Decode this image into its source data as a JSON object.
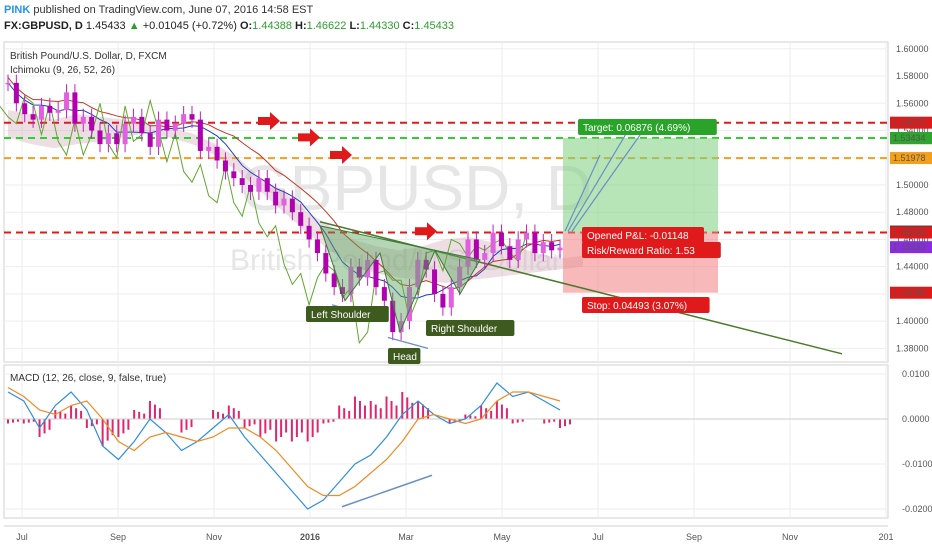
{
  "header": {
    "brand": "PINK",
    "published": "published on TradingView.com, June 07, 2016 14:58 EST",
    "symbol": "FX:GBPUSD, D",
    "last": "1.45433",
    "change": "+0.01045 (+0.72%)",
    "o_label": "O:",
    "o_val": "1.44388",
    "h_label": "H:",
    "h_val": "1.46622",
    "l_label": "L:",
    "l_val": "1.44330",
    "c_label": "C:",
    "c_val": "1.45433"
  },
  "chart_data": [
    {
      "type": "candlestick",
      "title": "British Pound/U.S. Dollar, D, FXCM",
      "watermark_symbol": "GBPUSD, D",
      "watermark_name": "British Pound/U.S. Dollar",
      "indicator": "Ichimoku (9, 26, 52, 26)",
      "x_ticks": [
        "Jul",
        "Sep",
        "Nov",
        "2016",
        "Mar",
        "May",
        "Jul",
        "Sep",
        "Nov",
        "201"
      ],
      "y_ticks": [
        "1.60000",
        "1.58000",
        "1.56000",
        "1.54000",
        "1.52000",
        "1.50000",
        "1.48000",
        "1.46000",
        "1.44000",
        "1.42000",
        "1.40000",
        "1.38000"
      ],
      "ylim": [
        1.37,
        1.605
      ],
      "price_labels": [
        {
          "text": "1.54575",
          "value": 1.54575,
          "color": "#e0191b"
        },
        {
          "text": "1.53457",
          "value": 1.53457,
          "color": "#2ea52e"
        },
        {
          "text": "1.53434",
          "value": 1.53434,
          "color": "#2ea52e"
        },
        {
          "text": "1.51978",
          "value": 1.51978,
          "color": "#f2a01a"
        },
        {
          "text": "1.46581",
          "value": 1.46581,
          "color": "#444444"
        },
        {
          "text": "1.46508",
          "value": 1.46508,
          "color": "#e0191b"
        },
        {
          "text": "1.45433",
          "value": 1.45433,
          "color": "#8a2be2"
        },
        {
          "text": "1.42088",
          "value": 1.42088,
          "color": "#e0191b"
        }
      ],
      "horizontal_lines": [
        {
          "value": 1.5457,
          "color": "#e0191b"
        },
        {
          "value": 1.5345,
          "color": "#33cc33"
        },
        {
          "value": 1.5197,
          "color": "#f2a01a"
        },
        {
          "value": 1.4651,
          "color": "#e0191b"
        }
      ],
      "annotations": {
        "left_shoulder": "Left Shoulder",
        "head": "Head",
        "right_shoulder": "Right Shoulder",
        "target": "Target: 0.06876 (4.69%)",
        "opened_pl": "Opened P&L: -0.01148",
        "risk_reward": "Risk/Reward Ratio: 1.53",
        "stop": "Stop: 0.04493 (3.07%)"
      },
      "close_series_approx": [
        1.575,
        1.56,
        1.552,
        1.548,
        1.558,
        1.553,
        1.555,
        1.568,
        1.545,
        1.55,
        1.54,
        1.53,
        1.538,
        1.53,
        1.545,
        1.55,
        1.538,
        1.528,
        1.548,
        1.54,
        1.545,
        1.552,
        1.548,
        1.525,
        1.528,
        1.518,
        1.51,
        1.505,
        1.5,
        1.495,
        1.505,
        1.495,
        1.485,
        1.49,
        1.48,
        1.47,
        1.46,
        1.45,
        1.435,
        1.425,
        1.42,
        1.44,
        1.432,
        1.445,
        1.425,
        1.415,
        1.392,
        1.4,
        1.425,
        1.445,
        1.438,
        1.42,
        1.41,
        1.425,
        1.44,
        1.46,
        1.445,
        1.45,
        1.465,
        1.455,
        1.445,
        1.46,
        1.465,
        1.45,
        1.458,
        1.452,
        1.454
      ]
    },
    {
      "type": "line",
      "title": "MACD (12, 26, close, 9, false, true)",
      "y_ticks": [
        "0.0100",
        "0.0000",
        "-0.0100",
        "-0.0200"
      ],
      "ylim": [
        -0.022,
        0.012
      ],
      "series": [
        {
          "name": "MACD",
          "color": "#2f8fe0",
          "values": [
            0.006,
            0.004,
            -0.002,
            0.003,
            0.006,
            0.002,
            -0.006,
            -0.009,
            -0.005,
            0.0,
            -0.003,
            -0.007,
            -0.005,
            -0.002,
            0.001,
            -0.004,
            -0.008,
            -0.012,
            -0.016,
            -0.02,
            -0.018,
            -0.014,
            -0.01,
            -0.008,
            -0.004,
            0.001,
            0.004,
            0.001,
            -0.001,
            0.0,
            0.003,
            0.008,
            0.005,
            0.006,
            0.004,
            0.002
          ]
        },
        {
          "name": "Signal",
          "color": "#f08a24",
          "values": [
            0.007,
            0.005,
            0.002,
            0.001,
            0.003,
            0.004,
            0.0,
            -0.005,
            -0.007,
            -0.004,
            -0.003,
            -0.004,
            -0.005,
            -0.004,
            -0.002,
            -0.002,
            -0.004,
            -0.007,
            -0.011,
            -0.015,
            -0.017,
            -0.017,
            -0.015,
            -0.012,
            -0.009,
            -0.005,
            0.0,
            0.001,
            0.0,
            -0.001,
            0.0,
            0.004,
            0.006,
            0.006,
            0.005,
            0.004
          ]
        }
      ],
      "histogram_color_pos": "#e0266c",
      "histogram_color_neg": "#e0266c"
    }
  ]
}
